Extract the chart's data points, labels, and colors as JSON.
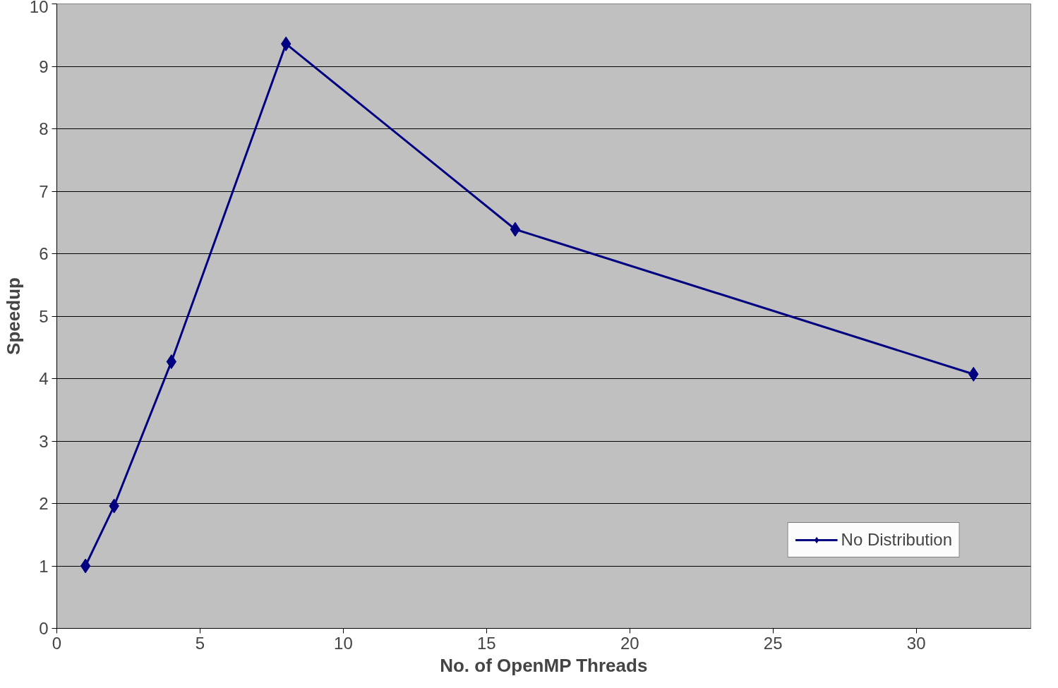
{
  "chart_data": {
    "type": "line",
    "xlabel": "No. of OpenMP Threads",
    "ylabel": "Speedup",
    "series": [
      {
        "name": "No Distribution",
        "color": "#000080",
        "x": [
          1,
          2,
          4,
          8,
          16,
          32
        ],
        "values": [
          1.0,
          1.96,
          4.27,
          9.36,
          6.39,
          4.07
        ]
      }
    ],
    "xlim": [
      0,
      34
    ],
    "xticks": [
      0,
      5,
      10,
      15,
      20,
      25,
      30
    ],
    "ylim": [
      0,
      10
    ],
    "yticks": [
      0,
      1,
      2,
      3,
      4,
      5,
      6,
      7,
      8,
      9,
      10
    ],
    "grid": "y",
    "legend": "bottom right",
    "marker": "diamond",
    "line_style": "solid"
  }
}
